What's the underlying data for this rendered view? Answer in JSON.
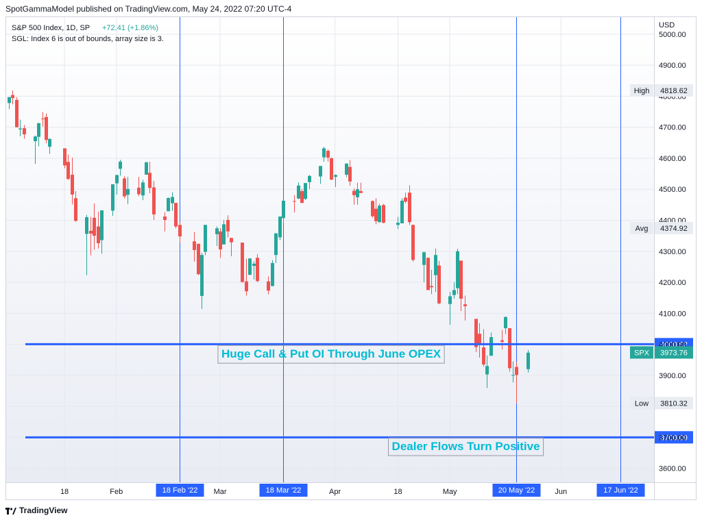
{
  "publisher_line": "SpotGammaModel published on TradingView.com, May 24, 2022 07:20 UTC-4",
  "footer": {
    "brand": "TradingView",
    "logo_icon": "tradingview-logo-icon"
  },
  "colors": {
    "up": "#26a69a",
    "down": "#ef5350",
    "level_line": "#2962ff",
    "vline": "#2962ff",
    "annotation_text": "#00bcd4",
    "badge_bg": "#2962ff"
  },
  "chart_data": {
    "type": "candlestick",
    "symbol_line": "S&P 500 Index, 1D, SP",
    "change": "+72.41 (+1.86%)",
    "error_line": "SGL: Index 6 is out of bounds, array size is 3.",
    "currency": "USD",
    "ylim": [
      3555,
      5055
    ],
    "y_ticks": [
      "5000.00",
      "4900.00",
      "4800.00",
      "4700.00",
      "4600.00",
      "4500.00",
      "4400.00",
      "4300.00",
      "4200.00",
      "4100.00",
      "4000.00",
      "3900.00",
      "3800.00",
      "3700.00",
      "3600.00"
    ],
    "x_ticks": [
      {
        "label": "18",
        "date": "2022-01-18"
      },
      {
        "label": "Feb",
        "date": "2022-02-01"
      },
      {
        "label": "Mar",
        "date": "2022-03-01"
      },
      {
        "label": "Apr",
        "date": "2022-04-01"
      },
      {
        "label": "18",
        "date": "2022-04-18"
      },
      {
        "label": "May",
        "date": "2022-05-02"
      },
      {
        "label": "Jun",
        "date": "2022-06-01"
      }
    ],
    "x_range": [
      "2022-01-03",
      "2022-06-25"
    ],
    "vertical_lines": [
      {
        "date": "2022-02-18",
        "label": "18 Feb '22"
      },
      {
        "date": "2022-03-18",
        "label": "18 Mar '22"
      },
      {
        "date": "2022-05-20",
        "label": "20 May '22"
      },
      {
        "date": "2022-06-17",
        "label": "17 Jun '22"
      }
    ],
    "horizontal_levels": [
      {
        "value": 4000.52,
        "label": "4000.52"
      },
      {
        "value": 3700.09,
        "label": "3700.09"
      }
    ],
    "price_markers": [
      {
        "name": "High",
        "value": 4818.62,
        "label": "4818.62"
      },
      {
        "name": "Avg",
        "value": 4374.92,
        "label": "4374.92"
      },
      {
        "name": "SPX",
        "value": 3973.76,
        "label": "3973.76"
      },
      {
        "name": "Low",
        "value": 3810.32,
        "label": "3810.32"
      }
    ],
    "annotations": [
      {
        "text": "Huge Call & Put OI Through June OPEX",
        "anchor_date": "2022-03-18",
        "anchor_value": 3970
      },
      {
        "text": "Dealer Flows Turn Positive",
        "anchor_date": "2022-05-03",
        "anchor_value": 3672
      }
    ],
    "candles": [
      {
        "d": "2022-01-03",
        "o": 4778,
        "h": 4797,
        "l": 4758,
        "c": 4797
      },
      {
        "d": "2022-01-04",
        "o": 4804,
        "h": 4819,
        "l": 4774,
        "c": 4794
      },
      {
        "d": "2022-01-05",
        "o": 4788,
        "h": 4797,
        "l": 4699,
        "c": 4700
      },
      {
        "d": "2022-01-06",
        "o": 4693,
        "h": 4725,
        "l": 4671,
        "c": 4696
      },
      {
        "d": "2022-01-07",
        "o": 4697,
        "h": 4707,
        "l": 4663,
        "c": 4677
      },
      {
        "d": "2022-01-10",
        "o": 4655,
        "h": 4673,
        "l": 4582,
        "c": 4670
      },
      {
        "d": "2022-01-11",
        "o": 4669,
        "h": 4714,
        "l": 4638,
        "c": 4713
      },
      {
        "d": "2022-01-12",
        "o": 4728,
        "h": 4749,
        "l": 4702,
        "c": 4726
      },
      {
        "d": "2022-01-13",
        "o": 4733,
        "h": 4744,
        "l": 4648,
        "c": 4659
      },
      {
        "d": "2022-01-14",
        "o": 4637,
        "h": 4665,
        "l": 4614,
        "c": 4662
      },
      {
        "d": "2022-01-18",
        "o": 4632,
        "h": 4632,
        "l": 4568,
        "c": 4577
      },
      {
        "d": "2022-01-19",
        "o": 4588,
        "h": 4612,
        "l": 4531,
        "c": 4533
      },
      {
        "d": "2022-01-20",
        "o": 4547,
        "h": 4602,
        "l": 4451,
        "c": 4483
      },
      {
        "d": "2022-01-21",
        "o": 4471,
        "h": 4494,
        "l": 4395,
        "c": 4398
      },
      {
        "d": "2022-01-24",
        "o": 4356,
        "h": 4417,
        "l": 4223,
        "c": 4410
      },
      {
        "d": "2022-01-25",
        "o": 4366,
        "h": 4411,
        "l": 4287,
        "c": 4357
      },
      {
        "d": "2022-01-26",
        "o": 4408,
        "h": 4454,
        "l": 4305,
        "c": 4350
      },
      {
        "d": "2022-01-27",
        "o": 4380,
        "h": 4428,
        "l": 4309,
        "c": 4326
      },
      {
        "d": "2022-01-28",
        "o": 4336,
        "h": 4432,
        "l": 4292,
        "c": 4432
      },
      {
        "d": "2022-01-31",
        "o": 4431,
        "h": 4516,
        "l": 4414,
        "c": 4516
      },
      {
        "d": "2022-02-01",
        "o": 4519,
        "h": 4546,
        "l": 4483,
        "c": 4546
      },
      {
        "d": "2022-02-02",
        "o": 4566,
        "h": 4595,
        "l": 4544,
        "c": 4589
      },
      {
        "d": "2022-02-03",
        "o": 4535,
        "h": 4542,
        "l": 4470,
        "c": 4477
      },
      {
        "d": "2022-02-04",
        "o": 4482,
        "h": 4540,
        "l": 4452,
        "c": 4501
      },
      {
        "d": "2022-02-07",
        "o": 4505,
        "h": 4540,
        "l": 4478,
        "c": 4484
      },
      {
        "d": "2022-02-08",
        "o": 4480,
        "h": 4531,
        "l": 4465,
        "c": 4522
      },
      {
        "d": "2022-02-09",
        "o": 4547,
        "h": 4588,
        "l": 4547,
        "c": 4587
      },
      {
        "d": "2022-02-10",
        "o": 4553,
        "h": 4589,
        "l": 4487,
        "c": 4504
      },
      {
        "d": "2022-02-11",
        "o": 4506,
        "h": 4527,
        "l": 4401,
        "c": 4419
      },
      {
        "d": "2022-02-14",
        "o": 4412,
        "h": 4426,
        "l": 4364,
        "c": 4401
      },
      {
        "d": "2022-02-15",
        "o": 4429,
        "h": 4473,
        "l": 4429,
        "c": 4472
      },
      {
        "d": "2022-02-16",
        "o": 4455,
        "h": 4490,
        "l": 4430,
        "c": 4475
      },
      {
        "d": "2022-02-17",
        "o": 4456,
        "h": 4456,
        "l": 4374,
        "c": 4380
      },
      {
        "d": "2022-02-18",
        "o": 4385,
        "h": 4394,
        "l": 4327,
        "c": 4348
      },
      {
        "d": "2022-02-22",
        "o": 4332,
        "h": 4362,
        "l": 4267,
        "c": 4304
      },
      {
        "d": "2022-02-23",
        "o": 4324,
        "h": 4325,
        "l": 4223,
        "c": 4226
      },
      {
        "d": "2022-02-24",
        "o": 4156,
        "h": 4295,
        "l": 4114,
        "c": 4288
      },
      {
        "d": "2022-02-25",
        "o": 4298,
        "h": 4385,
        "l": 4287,
        "c": 4385
      },
      {
        "d": "2022-02-28",
        "o": 4355,
        "h": 4380,
        "l": 4317,
        "c": 4374
      },
      {
        "d": "2022-03-01",
        "o": 4364,
        "h": 4375,
        "l": 4279,
        "c": 4306
      },
      {
        "d": "2022-03-02",
        "o": 4322,
        "h": 4401,
        "l": 4322,
        "c": 4387
      },
      {
        "d": "2022-03-03",
        "o": 4401,
        "h": 4416,
        "l": 4345,
        "c": 4364
      },
      {
        "d": "2022-03-04",
        "o": 4343,
        "h": 4343,
        "l": 4284,
        "c": 4329
      },
      {
        "d": "2022-03-07",
        "o": 4328,
        "h": 4328,
        "l": 4199,
        "c": 4201
      },
      {
        "d": "2022-03-08",
        "o": 4203,
        "h": 4276,
        "l": 4157,
        "c": 4171
      },
      {
        "d": "2022-03-09",
        "o": 4224,
        "h": 4277,
        "l": 4224,
        "c": 4277
      },
      {
        "d": "2022-03-10",
        "o": 4253,
        "h": 4268,
        "l": 4209,
        "c": 4260
      },
      {
        "d": "2022-03-11",
        "o": 4279,
        "h": 4291,
        "l": 4200,
        "c": 4204
      },
      {
        "d": "2022-03-14",
        "o": 4203,
        "h": 4219,
        "l": 4161,
        "c": 4173
      },
      {
        "d": "2022-03-15",
        "o": 4188,
        "h": 4271,
        "l": 4187,
        "c": 4262
      },
      {
        "d": "2022-03-16",
        "o": 4288,
        "h": 4358,
        "l": 4262,
        "c": 4358
      },
      {
        "d": "2022-03-17",
        "o": 4345,
        "h": 4412,
        "l": 4336,
        "c": 4412
      },
      {
        "d": "2022-03-18",
        "o": 4407,
        "h": 4465,
        "l": 4391,
        "c": 4463
      },
      {
        "d": "2022-03-21",
        "o": 4462,
        "h": 4481,
        "l": 4425,
        "c": 4461
      },
      {
        "d": "2022-03-22",
        "o": 4470,
        "h": 4522,
        "l": 4468,
        "c": 4512
      },
      {
        "d": "2022-03-23",
        "o": 4494,
        "h": 4501,
        "l": 4455,
        "c": 4456
      },
      {
        "d": "2022-03-24",
        "o": 4469,
        "h": 4520,
        "l": 4465,
        "c": 4520
      },
      {
        "d": "2022-03-25",
        "o": 4523,
        "h": 4546,
        "l": 4501,
        "c": 4543
      },
      {
        "d": "2022-03-28",
        "o": 4541,
        "h": 4575,
        "l": 4517,
        "c": 4575
      },
      {
        "d": "2022-03-29",
        "o": 4603,
        "h": 4637,
        "l": 4589,
        "c": 4632
      },
      {
        "d": "2022-03-30",
        "o": 4624,
        "h": 4628,
        "l": 4589,
        "c": 4602
      },
      {
        "d": "2022-03-31",
        "o": 4600,
        "h": 4603,
        "l": 4530,
        "c": 4531
      },
      {
        "d": "2022-04-01",
        "o": 4540,
        "h": 4548,
        "l": 4507,
        "c": 4546
      },
      {
        "d": "2022-04-04",
        "o": 4547,
        "h": 4583,
        "l": 4539,
        "c": 4583
      },
      {
        "d": "2022-04-05",
        "o": 4572,
        "h": 4594,
        "l": 4511,
        "c": 4525
      },
      {
        "d": "2022-04-06",
        "o": 4495,
        "h": 4503,
        "l": 4450,
        "c": 4481
      },
      {
        "d": "2022-04-07",
        "o": 4474,
        "h": 4521,
        "l": 4450,
        "c": 4500
      },
      {
        "d": "2022-04-08",
        "o": 4494,
        "h": 4521,
        "l": 4487,
        "c": 4488
      },
      {
        "d": "2022-04-11",
        "o": 4462,
        "h": 4464,
        "l": 4408,
        "c": 4413
      },
      {
        "d": "2022-04-12",
        "o": 4437,
        "h": 4471,
        "l": 4387,
        "c": 4397
      },
      {
        "d": "2022-04-13",
        "o": 4394,
        "h": 4453,
        "l": 4392,
        "c": 4447
      },
      {
        "d": "2022-04-14",
        "o": 4449,
        "h": 4453,
        "l": 4390,
        "c": 4392
      },
      {
        "d": "2022-04-18",
        "o": 4385,
        "h": 4411,
        "l": 4372,
        "c": 4392
      },
      {
        "d": "2022-04-19",
        "o": 4390,
        "h": 4471,
        "l": 4390,
        "c": 4463
      },
      {
        "d": "2022-04-20",
        "o": 4473,
        "h": 4489,
        "l": 4455,
        "c": 4460
      },
      {
        "d": "2022-04-21",
        "o": 4489,
        "h": 4513,
        "l": 4385,
        "c": 4394
      },
      {
        "d": "2022-04-22",
        "o": 4385,
        "h": 4386,
        "l": 4267,
        "c": 4272
      },
      {
        "d": "2022-04-25",
        "o": 4256,
        "h": 4299,
        "l": 4200,
        "c": 4297
      },
      {
        "d": "2022-04-26",
        "o": 4279,
        "h": 4279,
        "l": 4175,
        "c": 4175
      },
      {
        "d": "2022-04-27",
        "o": 4188,
        "h": 4240,
        "l": 4162,
        "c": 4184
      },
      {
        "d": "2022-04-28",
        "o": 4223,
        "h": 4309,
        "l": 4169,
        "c": 4288
      },
      {
        "d": "2022-04-29",
        "o": 4254,
        "h": 4269,
        "l": 4129,
        "c": 4132
      },
      {
        "d": "2022-05-02",
        "o": 4130,
        "h": 4169,
        "l": 4063,
        "c": 4155
      },
      {
        "d": "2022-05-03",
        "o": 4159,
        "h": 4200,
        "l": 4147,
        "c": 4175
      },
      {
        "d": "2022-05-04",
        "o": 4181,
        "h": 4308,
        "l": 4162,
        "c": 4300
      },
      {
        "d": "2022-05-05",
        "o": 4270,
        "h": 4270,
        "l": 4107,
        "c": 4147
      },
      {
        "d": "2022-05-06",
        "o": 4129,
        "h": 4157,
        "l": 4077,
        "c": 4123
      },
      {
        "d": "2022-05-09",
        "o": 4082,
        "h": 4082,
        "l": 3975,
        "c": 3991
      },
      {
        "d": "2022-05-10",
        "o": 4034,
        "h": 4068,
        "l": 3957,
        "c": 4001
      },
      {
        "d": "2022-05-11",
        "o": 3990,
        "h": 4049,
        "l": 3928,
        "c": 3935
      },
      {
        "d": "2022-05-12",
        "o": 3903,
        "h": 3964,
        "l": 3859,
        "c": 3930
      },
      {
        "d": "2022-05-13",
        "o": 3963,
        "h": 4038,
        "l": 3963,
        "c": 4023
      },
      {
        "d": "2022-05-16",
        "o": 4013,
        "h": 4046,
        "l": 3983,
        "c": 4008
      },
      {
        "d": "2022-05-17",
        "o": 4052,
        "h": 4090,
        "l": 4033,
        "c": 4088
      },
      {
        "d": "2022-05-18",
        "o": 4052,
        "h": 4052,
        "l": 3912,
        "c": 3923
      },
      {
        "d": "2022-05-19",
        "o": 3899,
        "h": 3945,
        "l": 3877,
        "c": 3901
      },
      {
        "d": "2022-05-20",
        "o": 3927,
        "h": 3943,
        "l": 3810,
        "c": 3901
      },
      {
        "d": "2022-05-23",
        "o": 3920,
        "h": 3981,
        "l": 3909,
        "c": 3973
      }
    ]
  }
}
